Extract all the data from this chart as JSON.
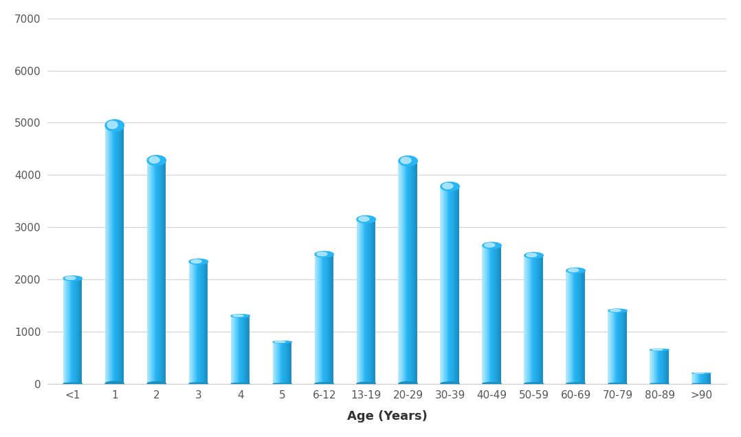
{
  "categories": [
    "<1",
    "1",
    "2",
    "3",
    "4",
    "5",
    "6-12",
    "13-19",
    "20-29",
    "30-39",
    "40-49",
    "50-59",
    "60-69",
    "70-79",
    "80-89",
    ">90"
  ],
  "values": [
    2020,
    4950,
    4280,
    2340,
    1300,
    800,
    2480,
    3150,
    4270,
    3780,
    2650,
    2460,
    2170,
    1400,
    650,
    200
  ],
  "bar_color_main": "#29b6f6",
  "bar_color_light": "#87dcfc",
  "bar_color_dark": "#1a9fd4",
  "bar_color_highlight": "#b8eaff",
  "xlabel": "Age (Years)",
  "ylim": [
    0,
    7000
  ],
  "yticks": [
    0,
    1000,
    2000,
    3000,
    4000,
    5000,
    6000,
    7000
  ],
  "background_color": "#ffffff",
  "grid_color": "#d0d0d0",
  "xlabel_fontsize": 13,
  "tick_fontsize": 11,
  "figsize": [
    10.78,
    6.35
  ],
  "dpi": 100,
  "bar_width": 0.45
}
